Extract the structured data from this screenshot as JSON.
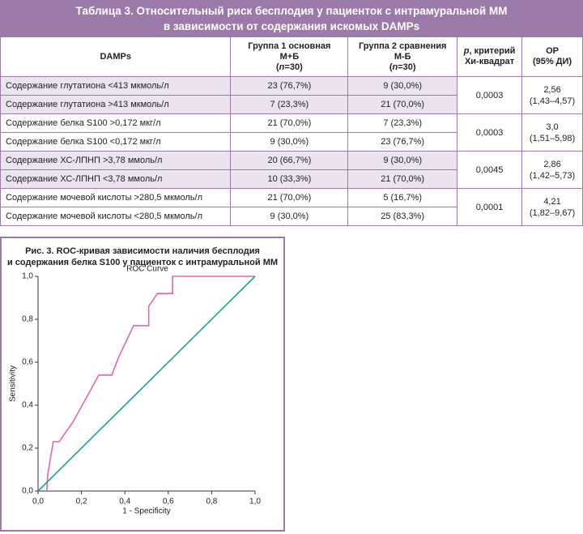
{
  "header": {
    "title_lines": [
      "Таблица 3. Относительный риск бесплодия у пациенток с интрамуральной ММ",
      "в зависимости от содержания искомых DAMPs"
    ]
  },
  "table": {
    "columns": [
      {
        "lines": [
          "DAMPs"
        ]
      },
      {
        "lines": [
          "Группа 1 основная",
          "М+Б"
        ],
        "n_parts": [
          "(",
          "n",
          "=30)"
        ]
      },
      {
        "lines": [
          "Группа 2  сравнения",
          "М-Б"
        ],
        "n_parts": [
          "(",
          "n",
          "=30)"
        ]
      },
      {
        "p_parts": [
          "p",
          ", критерий"
        ],
        "lines": [
          "Хи-квадрат"
        ]
      },
      {
        "lines": [
          "ОР",
          "(95% ДИ)"
        ]
      }
    ],
    "groups": [
      {
        "rows": [
          [
            "Содержание глутатиона <413 мкмоль/л",
            "23 (76,7%)",
            "9 (30,0%)"
          ],
          [
            "Содержание глутатиона >413 мкмоль/л",
            "7 (23,3%)",
            "21 (70,0%)"
          ]
        ],
        "p": "0,0003",
        "or": [
          "2,56",
          "(1,43–4,57)"
        ]
      },
      {
        "rows": [
          [
            "Содержание белка S100 >0,172 мкг/л",
            "21 (70,0%)",
            "7 (23,3%)"
          ],
          [
            "Содержание белка S100 <0,172 мкг/л",
            "9 (30,0%)",
            "23 (76,7%)"
          ]
        ],
        "p": "0,0003",
        "or": [
          "3,0",
          "(1,51–5,98)"
        ]
      },
      {
        "rows": [
          [
            "Содержание ХС-ЛПНП >3,78 ммоль/л",
            "20 (66,7%)",
            "9 (30,0%)"
          ],
          [
            "Содержание ХС-ЛПНП <3,78 ммоль/л",
            "10 (33,3%)",
            "21 (70,0%)"
          ]
        ],
        "p": "0,0045",
        "or": [
          "2,86",
          "(1,42–5,73)"
        ]
      },
      {
        "rows": [
          [
            "Содержание мочевой кислоты >280,5 мкмоль/л",
            "21 (70,0%)",
            "5 (16,7%)"
          ],
          [
            "Содержание мочевой кислоты  <280,5 мкмоль/л",
            "9 (30,0%)",
            "25 (83,3%)"
          ]
        ],
        "p": "0,0001",
        "or": [
          "4,21",
          "(1,82–9,67)"
        ]
      }
    ]
  },
  "chart_data": {
    "type": "line",
    "caption_lines": [
      "Рис. 3. ROC-кривая зависимости наличия бесплодия",
      "и содержания белка S100 у пациенток с интрамуральной ММ"
    ],
    "title": "ROC Curve",
    "x_label": "1 - Specificity",
    "y_label": "Sensitivity",
    "xlim": [
      0,
      1
    ],
    "ylim": [
      0,
      1
    ],
    "xticks": [
      {
        "value": 0,
        "label": "0,0"
      },
      {
        "value": 0.2,
        "label": "0,2"
      },
      {
        "value": 0.4,
        "label": "0,4"
      },
      {
        "value": 0.6,
        "label": "0,6"
      },
      {
        "value": 0.8,
        "label": "0,8"
      },
      {
        "value": 1,
        "label": "1,0"
      }
    ],
    "yticks": [
      {
        "value": 0,
        "label": "0,0"
      },
      {
        "value": 0.2,
        "label": "0,2"
      },
      {
        "value": 0.4,
        "label": "0,4"
      },
      {
        "value": 0.6,
        "label": "0,6"
      },
      {
        "value": 0.8,
        "label": "0,8"
      },
      {
        "value": 1,
        "label": "1,0"
      }
    ],
    "series": [
      {
        "color": "#e066b0",
        "x": [
          0.04,
          0.045,
          0.07,
          0.097,
          0.16,
          0.28,
          0.34,
          0.37,
          0.44,
          0.51,
          0.51,
          0.55,
          0.62,
          0.62,
          1
        ],
        "values": [
          0,
          0.08,
          0.23,
          0.23,
          0.32,
          0.54,
          0.54,
          0.62,
          0.77,
          0.77,
          0.86,
          0.92,
          0.92,
          1,
          1
        ]
      },
      {
        "color": "#1aa39a",
        "x": [
          0,
          1
        ],
        "values": [
          0,
          1
        ]
      }
    ]
  }
}
